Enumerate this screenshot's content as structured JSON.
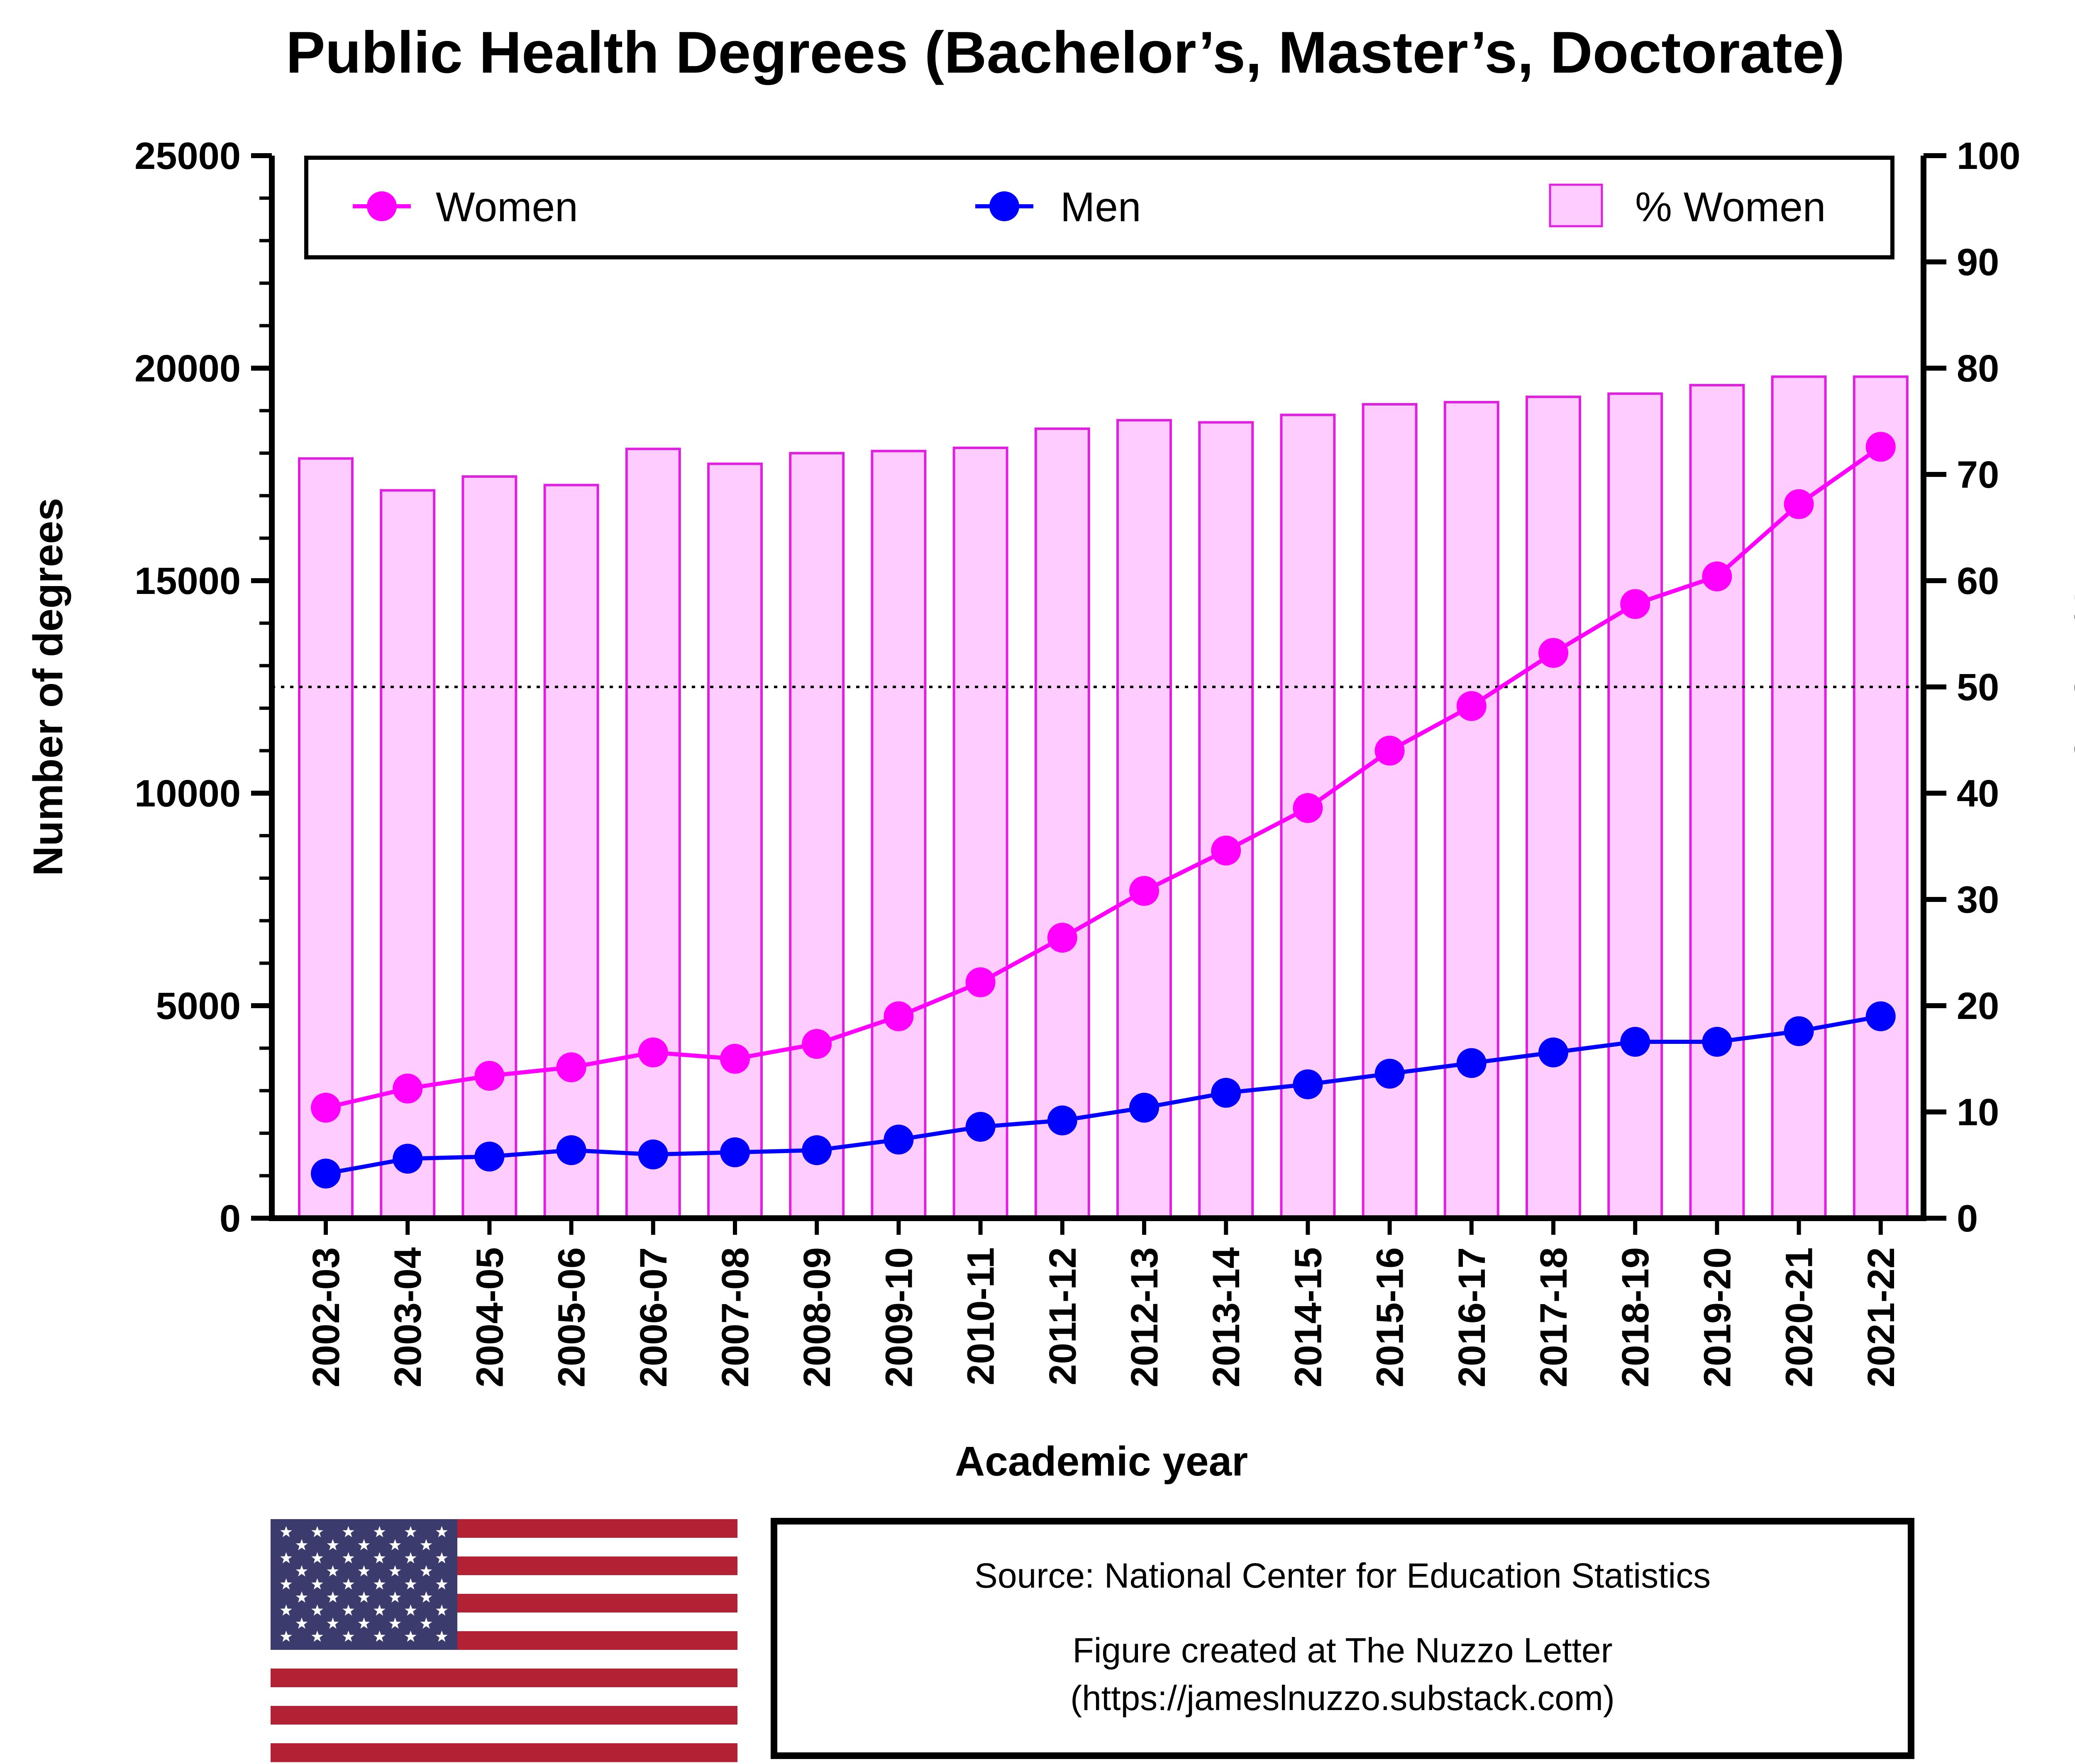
{
  "chart_data": {
    "type": "bar+line",
    "title": "Public Health Degrees (Bachelor’s, Master’s, Doctorate)",
    "xlabel": "Academic year",
    "ylabel": "Number of degrees",
    "y2label": "% Women",
    "ylim": [
      0,
      25000
    ],
    "y2lim": [
      0,
      100
    ],
    "yticks": [
      "0",
      "5000",
      "10000",
      "15000",
      "20000",
      "25000"
    ],
    "y2ticks": [
      "0",
      "10",
      "20",
      "30",
      "40",
      "50",
      "60",
      "70",
      "80",
      "90",
      "100"
    ],
    "reference_line": {
      "axis": "y2",
      "value": 50,
      "style": "dotted"
    },
    "legend_position": "top",
    "categories": [
      "2002-03",
      "2003-04",
      "2004-05",
      "2005-06",
      "2006-07",
      "2007-08",
      "2008-09",
      "2009-10",
      "2010-11",
      "2011-12",
      "2012-13",
      "2013-14",
      "2014-15",
      "2015-16",
      "2016-17",
      "2017-18",
      "2018-19",
      "2019-20",
      "2020-21",
      "2021-22"
    ],
    "series": [
      {
        "name": "Women",
        "type": "line",
        "axis": "y",
        "color": "#ff00ff",
        "values": [
          2600,
          3050,
          3350,
          3550,
          3900,
          3750,
          4100,
          4750,
          5550,
          6600,
          7700,
          8650,
          9650,
          11000,
          12050,
          13300,
          14450,
          15100,
          16800,
          18150
        ]
      },
      {
        "name": "Men",
        "type": "line",
        "axis": "y",
        "color": "#0000ff",
        "values": [
          1050,
          1400,
          1450,
          1600,
          1500,
          1550,
          1600,
          1850,
          2150,
          2300,
          2600,
          2950,
          3150,
          3400,
          3650,
          3900,
          4150,
          4150,
          4400,
          4750
        ]
      },
      {
        "name": "% Women",
        "type": "bar",
        "axis": "y2",
        "color": "#ffccff",
        "edge": "#e020e0",
        "values": [
          71.5,
          68.5,
          69.8,
          69.0,
          72.4,
          71.0,
          72.0,
          72.2,
          72.5,
          74.3,
          75.1,
          74.9,
          75.6,
          76.6,
          76.8,
          77.3,
          77.6,
          78.4,
          79.2,
          79.2
        ]
      }
    ]
  },
  "footer": {
    "source": "Source: National Center for Education Statistics",
    "credit_line1": "Figure created at The Nuzzo Letter",
    "credit_line2": "(https://jameslnuzzo.substack.com)"
  },
  "flag": {
    "name": "us-flag",
    "red": "#b22234",
    "blue": "#3c3b6e",
    "white": "#ffffff"
  }
}
